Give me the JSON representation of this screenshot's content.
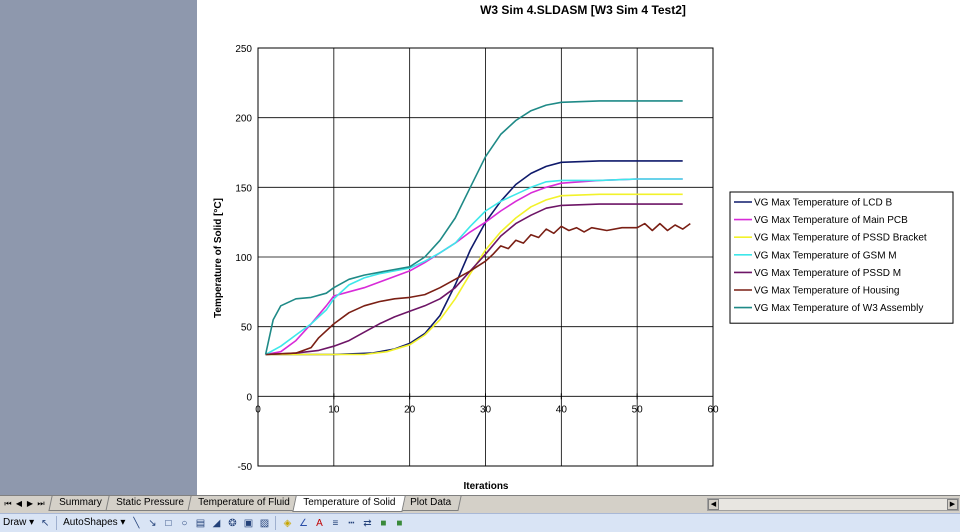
{
  "chart_data": {
    "type": "line",
    "title": "W3 Sim 4.SLDASM [W3 Sim 4 Test2]",
    "xlabel": "Iterations",
    "ylabel": "Temperature of Solid  [°C]",
    "xlim": [
      0,
      60
    ],
    "ylim": [
      -50,
      250
    ],
    "xticks": [
      0,
      10,
      20,
      30,
      40,
      50,
      60
    ],
    "yticks": [
      -50,
      0,
      50,
      100,
      150,
      200,
      250
    ],
    "grid": true,
    "legend_position": "right",
    "series": [
      {
        "name": "VG Max Temperature of LCD B",
        "color": "#0f1a6b",
        "points": [
          [
            1,
            30
          ],
          [
            5,
            30
          ],
          [
            10,
            30
          ],
          [
            15,
            31
          ],
          [
            18,
            34
          ],
          [
            20,
            38
          ],
          [
            22,
            45
          ],
          [
            24,
            58
          ],
          [
            26,
            80
          ],
          [
            28,
            105
          ],
          [
            30,
            125
          ],
          [
            32,
            140
          ],
          [
            34,
            152
          ],
          [
            36,
            160
          ],
          [
            38,
            165
          ],
          [
            40,
            168
          ],
          [
            45,
            169
          ],
          [
            50,
            169
          ],
          [
            56,
            169
          ]
        ]
      },
      {
        "name": "VG Max Temperature of Main PCB",
        "color": "#d82bd8",
        "points": [
          [
            1,
            30
          ],
          [
            3,
            32
          ],
          [
            5,
            40
          ],
          [
            7,
            52
          ],
          [
            9,
            65
          ],
          [
            10,
            72
          ],
          [
            12,
            75
          ],
          [
            14,
            78
          ],
          [
            16,
            82
          ],
          [
            18,
            86
          ],
          [
            20,
            90
          ],
          [
            22,
            96
          ],
          [
            24,
            103
          ],
          [
            26,
            110
          ],
          [
            28,
            118
          ],
          [
            30,
            125
          ],
          [
            32,
            133
          ],
          [
            34,
            140
          ],
          [
            36,
            146
          ],
          [
            38,
            150
          ],
          [
            40,
            153
          ],
          [
            45,
            155
          ],
          [
            50,
            156
          ],
          [
            56,
            156
          ]
        ]
      },
      {
        "name": "VG Max Temperature of PSSD Bracket",
        "color": "#f2f22a",
        "points": [
          [
            1,
            30
          ],
          [
            5,
            30
          ],
          [
            10,
            30
          ],
          [
            14,
            30
          ],
          [
            17,
            32
          ],
          [
            20,
            37
          ],
          [
            22,
            44
          ],
          [
            24,
            55
          ],
          [
            26,
            70
          ],
          [
            28,
            88
          ],
          [
            30,
            105
          ],
          [
            32,
            118
          ],
          [
            34,
            128
          ],
          [
            36,
            136
          ],
          [
            38,
            141
          ],
          [
            40,
            144
          ],
          [
            45,
            145
          ],
          [
            50,
            145
          ],
          [
            56,
            145
          ]
        ]
      },
      {
        "name": "VG Max Temperature of GSM M",
        "color": "#3ee7ea",
        "points": [
          [
            1,
            30
          ],
          [
            3,
            36
          ],
          [
            5,
            44
          ],
          [
            7,
            52
          ],
          [
            9,
            62
          ],
          [
            10,
            70
          ],
          [
            12,
            80
          ],
          [
            14,
            85
          ],
          [
            16,
            88
          ],
          [
            18,
            90
          ],
          [
            20,
            92
          ],
          [
            22,
            97
          ],
          [
            24,
            103
          ],
          [
            26,
            110
          ],
          [
            28,
            122
          ],
          [
            30,
            133
          ],
          [
            32,
            140
          ],
          [
            34,
            145
          ],
          [
            36,
            150
          ],
          [
            38,
            154
          ],
          [
            40,
            155
          ],
          [
            45,
            155
          ],
          [
            50,
            156
          ],
          [
            56,
            156
          ]
        ]
      },
      {
        "name": "VG Max Temperature of PSSD M",
        "color": "#6d1566",
        "points": [
          [
            1,
            30
          ],
          [
            5,
            31
          ],
          [
            8,
            33
          ],
          [
            10,
            36
          ],
          [
            12,
            40
          ],
          [
            14,
            46
          ],
          [
            16,
            52
          ],
          [
            18,
            57
          ],
          [
            20,
            61
          ],
          [
            22,
            65
          ],
          [
            24,
            70
          ],
          [
            26,
            78
          ],
          [
            28,
            90
          ],
          [
            30,
            102
          ],
          [
            32,
            115
          ],
          [
            34,
            124
          ],
          [
            36,
            130
          ],
          [
            38,
            135
          ],
          [
            40,
            137
          ],
          [
            45,
            138
          ],
          [
            50,
            138
          ],
          [
            56,
            138
          ]
        ]
      },
      {
        "name": "VG Max Temperature of Housing",
        "color": "#7a1f14",
        "points": [
          [
            1,
            30
          ],
          [
            5,
            31
          ],
          [
            7,
            35
          ],
          [
            8,
            42
          ],
          [
            10,
            52
          ],
          [
            12,
            60
          ],
          [
            14,
            65
          ],
          [
            16,
            68
          ],
          [
            18,
            70
          ],
          [
            20,
            71
          ],
          [
            22,
            73
          ],
          [
            24,
            78
          ],
          [
            26,
            84
          ],
          [
            28,
            90
          ],
          [
            30,
            97
          ],
          [
            31,
            102
          ],
          [
            32,
            108
          ],
          [
            33,
            106
          ],
          [
            34,
            112
          ],
          [
            35,
            110
          ],
          [
            36,
            116
          ],
          [
            37,
            114
          ],
          [
            38,
            120
          ],
          [
            39,
            117
          ],
          [
            40,
            122
          ],
          [
            41,
            119
          ],
          [
            42,
            121
          ],
          [
            43,
            118
          ],
          [
            44,
            121
          ],
          [
            46,
            119
          ],
          [
            48,
            121
          ],
          [
            50,
            121
          ],
          [
            51,
            124
          ],
          [
            52,
            119
          ],
          [
            53,
            124
          ],
          [
            54,
            119
          ],
          [
            55,
            123
          ],
          [
            56,
            120
          ],
          [
            57,
            124
          ]
        ]
      },
      {
        "name": "VG Max Temperature of W3 Assembly",
        "color": "#1f8a87",
        "points": [
          [
            1,
            30
          ],
          [
            2,
            55
          ],
          [
            3,
            65
          ],
          [
            5,
            70
          ],
          [
            7,
            71
          ],
          [
            9,
            74
          ],
          [
            10,
            78
          ],
          [
            12,
            84
          ],
          [
            14,
            87
          ],
          [
            16,
            89
          ],
          [
            18,
            91
          ],
          [
            20,
            93
          ],
          [
            22,
            100
          ],
          [
            24,
            112
          ],
          [
            26,
            128
          ],
          [
            28,
            150
          ],
          [
            30,
            172
          ],
          [
            32,
            188
          ],
          [
            34,
            198
          ],
          [
            36,
            205
          ],
          [
            38,
            209
          ],
          [
            40,
            211
          ],
          [
            45,
            212
          ],
          [
            50,
            212
          ],
          [
            56,
            212
          ]
        ]
      }
    ]
  },
  "tabbar": {
    "nav": [
      "⏮",
      "◀",
      "▶",
      "⏭"
    ],
    "tabs": [
      "Summary",
      "Static Pressure",
      "Temperature of Fluid",
      "Temperature of Solid",
      "Plot Data"
    ],
    "active_tab": "Temperature of Solid"
  },
  "drawbar": {
    "draw_label": "Draw ▾",
    "autoshapes_label": "AutoShapes ▾",
    "icons": [
      "pointer-icon",
      "line-icon",
      "arrow-icon",
      "rectangle-icon",
      "oval-icon",
      "textbox-icon",
      "wordart-icon",
      "diagram-icon",
      "clipart-icon",
      "picture-icon",
      "fill-color-icon",
      "line-color-icon",
      "font-color-icon",
      "line-style-icon",
      "dash-style-icon",
      "arrow-style-icon",
      "shadow-icon",
      "3d-icon"
    ]
  }
}
